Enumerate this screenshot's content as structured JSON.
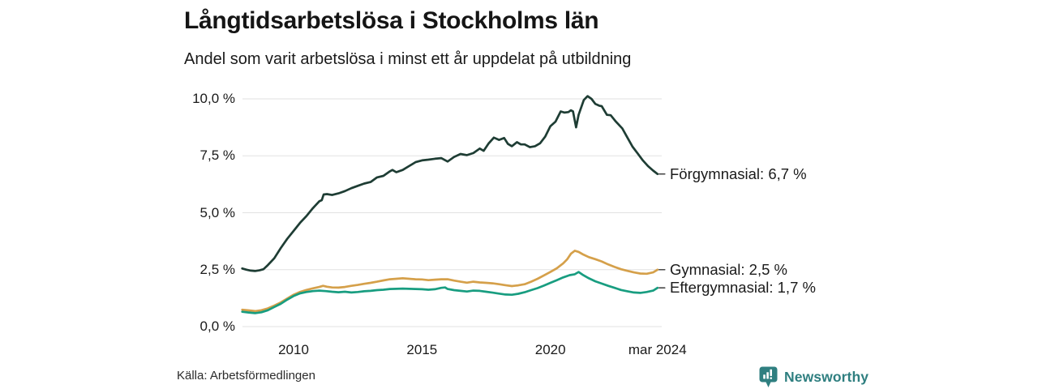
{
  "header": {},
  "footer": {},
  "branding": {
    "logo_text": "Newsworthy",
    "logo_color": "#2f7f80"
  },
  "chart_data": {
    "type": "line",
    "title": "Långtidsarbetslösa i Stockholms län",
    "subtitle": "Andel som varit arbetslösa i minst ett år uppdelat på utbildning",
    "source": "Källa: Arbetsförmedlingen",
    "grid_on": true,
    "grid_color": "#e2e2e2",
    "text_color": "#1a1a1a",
    "leader_dash_color": "#4a4a4a",
    "legend_position": "right-end-labels",
    "x_axis": {
      "unit": "year",
      "range": [
        2008.0,
        2024.34
      ],
      "tick_values": [
        2010,
        2015,
        2020,
        2024.17
      ],
      "tick_labels": [
        "2010",
        "2015",
        "2020",
        "mar 2024"
      ]
    },
    "y_axis": {
      "unit": "percent",
      "range": [
        0,
        10.5
      ],
      "tick_values": [
        0,
        2.5,
        5,
        7.5,
        10
      ],
      "tick_labels": [
        "0,0 %",
        "2,5 %",
        "5,0 %",
        "7,5 %",
        "10,0 %"
      ]
    },
    "series": [
      {
        "name": "Förgymnasial",
        "end_label": "Förgymnasial: 6,7 %",
        "end_value": 6.7,
        "color": "#1e3d34",
        "points": [
          [
            2008.0,
            2.55
          ],
          [
            2008.17,
            2.5
          ],
          [
            2008.33,
            2.46
          ],
          [
            2008.5,
            2.44
          ],
          [
            2008.67,
            2.47
          ],
          [
            2008.83,
            2.52
          ],
          [
            2009.0,
            2.7
          ],
          [
            2009.25,
            3.0
          ],
          [
            2009.5,
            3.45
          ],
          [
            2009.75,
            3.85
          ],
          [
            2010.0,
            4.2
          ],
          [
            2010.25,
            4.55
          ],
          [
            2010.5,
            4.85
          ],
          [
            2010.75,
            5.2
          ],
          [
            2011.0,
            5.5
          ],
          [
            2011.1,
            5.55
          ],
          [
            2011.17,
            5.8
          ],
          [
            2011.3,
            5.82
          ],
          [
            2011.5,
            5.78
          ],
          [
            2011.75,
            5.85
          ],
          [
            2012.0,
            5.95
          ],
          [
            2012.25,
            6.08
          ],
          [
            2012.5,
            6.18
          ],
          [
            2012.75,
            6.28
          ],
          [
            2013.0,
            6.35
          ],
          [
            2013.25,
            6.55
          ],
          [
            2013.5,
            6.62
          ],
          [
            2013.75,
            6.82
          ],
          [
            2013.85,
            6.88
          ],
          [
            2014.0,
            6.78
          ],
          [
            2014.25,
            6.88
          ],
          [
            2014.5,
            7.05
          ],
          [
            2014.75,
            7.22
          ],
          [
            2015.0,
            7.3
          ],
          [
            2015.25,
            7.33
          ],
          [
            2015.5,
            7.37
          ],
          [
            2015.75,
            7.4
          ],
          [
            2016.0,
            7.25
          ],
          [
            2016.25,
            7.45
          ],
          [
            2016.5,
            7.58
          ],
          [
            2016.75,
            7.53
          ],
          [
            2017.0,
            7.62
          ],
          [
            2017.25,
            7.82
          ],
          [
            2017.4,
            7.72
          ],
          [
            2017.6,
            8.05
          ],
          [
            2017.8,
            8.3
          ],
          [
            2018.0,
            8.2
          ],
          [
            2018.2,
            8.28
          ],
          [
            2018.35,
            8.02
          ],
          [
            2018.5,
            7.92
          ],
          [
            2018.7,
            8.1
          ],
          [
            2018.85,
            8.0
          ],
          [
            2019.0,
            8.0
          ],
          [
            2019.2,
            7.88
          ],
          [
            2019.4,
            7.92
          ],
          [
            2019.6,
            8.05
          ],
          [
            2019.8,
            8.35
          ],
          [
            2020.0,
            8.8
          ],
          [
            2020.2,
            9.0
          ],
          [
            2020.4,
            9.45
          ],
          [
            2020.55,
            9.4
          ],
          [
            2020.7,
            9.42
          ],
          [
            2020.8,
            9.5
          ],
          [
            2020.88,
            9.45
          ],
          [
            2021.0,
            8.75
          ],
          [
            2021.1,
            9.3
          ],
          [
            2021.3,
            9.95
          ],
          [
            2021.45,
            10.12
          ],
          [
            2021.6,
            10.0
          ],
          [
            2021.75,
            9.78
          ],
          [
            2021.9,
            9.7
          ],
          [
            2022.0,
            9.68
          ],
          [
            2022.2,
            9.3
          ],
          [
            2022.35,
            9.28
          ],
          [
            2022.55,
            9.0
          ],
          [
            2022.8,
            8.7
          ],
          [
            2023.0,
            8.3
          ],
          [
            2023.2,
            7.9
          ],
          [
            2023.4,
            7.6
          ],
          [
            2023.6,
            7.3
          ],
          [
            2023.8,
            7.05
          ],
          [
            2024.0,
            6.85
          ],
          [
            2024.17,
            6.7
          ]
        ]
      },
      {
        "name": "Gymnasial",
        "end_label": "Gymnasial: 2,5 %",
        "end_value": 2.5,
        "color": "#d5a04a",
        "points": [
          [
            2008.0,
            0.74
          ],
          [
            2008.25,
            0.71
          ],
          [
            2008.5,
            0.68
          ],
          [
            2008.75,
            0.72
          ],
          [
            2009.0,
            0.8
          ],
          [
            2009.25,
            0.92
          ],
          [
            2009.5,
            1.06
          ],
          [
            2009.75,
            1.23
          ],
          [
            2010.0,
            1.4
          ],
          [
            2010.25,
            1.52
          ],
          [
            2010.5,
            1.61
          ],
          [
            2010.75,
            1.68
          ],
          [
            2011.0,
            1.74
          ],
          [
            2011.15,
            1.79
          ],
          [
            2011.3,
            1.75
          ],
          [
            2011.5,
            1.72
          ],
          [
            2011.75,
            1.71
          ],
          [
            2012.0,
            1.74
          ],
          [
            2012.25,
            1.79
          ],
          [
            2012.5,
            1.83
          ],
          [
            2012.75,
            1.88
          ],
          [
            2013.0,
            1.92
          ],
          [
            2013.25,
            1.97
          ],
          [
            2013.5,
            2.03
          ],
          [
            2013.75,
            2.08
          ],
          [
            2014.0,
            2.1
          ],
          [
            2014.25,
            2.12
          ],
          [
            2014.5,
            2.1
          ],
          [
            2014.75,
            2.08
          ],
          [
            2015.0,
            2.07
          ],
          [
            2015.25,
            2.04
          ],
          [
            2015.5,
            2.06
          ],
          [
            2015.75,
            2.08
          ],
          [
            2016.0,
            2.08
          ],
          [
            2016.25,
            2.02
          ],
          [
            2016.5,
            1.97
          ],
          [
            2016.75,
            1.93
          ],
          [
            2017.0,
            1.97
          ],
          [
            2017.25,
            1.94
          ],
          [
            2017.5,
            1.92
          ],
          [
            2017.75,
            1.9
          ],
          [
            2018.0,
            1.86
          ],
          [
            2018.25,
            1.82
          ],
          [
            2018.5,
            1.78
          ],
          [
            2018.75,
            1.81
          ],
          [
            2019.0,
            1.86
          ],
          [
            2019.25,
            1.97
          ],
          [
            2019.5,
            2.1
          ],
          [
            2019.75,
            2.25
          ],
          [
            2020.0,
            2.4
          ],
          [
            2020.25,
            2.56
          ],
          [
            2020.5,
            2.78
          ],
          [
            2020.65,
            2.95
          ],
          [
            2020.8,
            3.2
          ],
          [
            2020.95,
            3.33
          ],
          [
            2021.1,
            3.28
          ],
          [
            2021.25,
            3.18
          ],
          [
            2021.5,
            3.05
          ],
          [
            2021.75,
            2.96
          ],
          [
            2022.0,
            2.86
          ],
          [
            2022.25,
            2.73
          ],
          [
            2022.5,
            2.62
          ],
          [
            2022.75,
            2.52
          ],
          [
            2023.0,
            2.45
          ],
          [
            2023.25,
            2.38
          ],
          [
            2023.5,
            2.33
          ],
          [
            2023.75,
            2.32
          ],
          [
            2024.0,
            2.38
          ],
          [
            2024.17,
            2.5
          ]
        ]
      },
      {
        "name": "Eftergymnasial",
        "end_label": "Eftergymnasial: 1,7 %",
        "end_value": 1.7,
        "color": "#189d80",
        "points": [
          [
            2008.0,
            0.65
          ],
          [
            2008.25,
            0.62
          ],
          [
            2008.5,
            0.59
          ],
          [
            2008.75,
            0.63
          ],
          [
            2009.0,
            0.72
          ],
          [
            2009.25,
            0.86
          ],
          [
            2009.5,
            1.0
          ],
          [
            2009.75,
            1.18
          ],
          [
            2010.0,
            1.34
          ],
          [
            2010.25,
            1.46
          ],
          [
            2010.5,
            1.52
          ],
          [
            2010.75,
            1.56
          ],
          [
            2011.0,
            1.58
          ],
          [
            2011.25,
            1.56
          ],
          [
            2011.5,
            1.53
          ],
          [
            2011.75,
            1.51
          ],
          [
            2012.0,
            1.53
          ],
          [
            2012.25,
            1.5
          ],
          [
            2012.5,
            1.52
          ],
          [
            2012.75,
            1.55
          ],
          [
            2013.0,
            1.57
          ],
          [
            2013.25,
            1.6
          ],
          [
            2013.5,
            1.62
          ],
          [
            2013.75,
            1.65
          ],
          [
            2014.0,
            1.66
          ],
          [
            2014.25,
            1.67
          ],
          [
            2014.5,
            1.66
          ],
          [
            2014.75,
            1.65
          ],
          [
            2015.0,
            1.64
          ],
          [
            2015.25,
            1.62
          ],
          [
            2015.5,
            1.64
          ],
          [
            2015.75,
            1.7
          ],
          [
            2015.9,
            1.72
          ],
          [
            2016.0,
            1.65
          ],
          [
            2016.25,
            1.6
          ],
          [
            2016.5,
            1.57
          ],
          [
            2016.75,
            1.54
          ],
          [
            2017.0,
            1.58
          ],
          [
            2017.25,
            1.57
          ],
          [
            2017.5,
            1.53
          ],
          [
            2017.75,
            1.49
          ],
          [
            2018.0,
            1.45
          ],
          [
            2018.25,
            1.41
          ],
          [
            2018.5,
            1.4
          ],
          [
            2018.75,
            1.44
          ],
          [
            2019.0,
            1.51
          ],
          [
            2019.25,
            1.6
          ],
          [
            2019.5,
            1.69
          ],
          [
            2019.75,
            1.8
          ],
          [
            2020.0,
            1.92
          ],
          [
            2020.25,
            2.04
          ],
          [
            2020.5,
            2.16
          ],
          [
            2020.75,
            2.26
          ],
          [
            2020.95,
            2.3
          ],
          [
            2021.1,
            2.4
          ],
          [
            2021.25,
            2.28
          ],
          [
            2021.5,
            2.12
          ],
          [
            2021.75,
            1.99
          ],
          [
            2022.0,
            1.89
          ],
          [
            2022.25,
            1.79
          ],
          [
            2022.5,
            1.7
          ],
          [
            2022.75,
            1.61
          ],
          [
            2023.0,
            1.55
          ],
          [
            2023.25,
            1.5
          ],
          [
            2023.5,
            1.48
          ],
          [
            2023.75,
            1.52
          ],
          [
            2024.0,
            1.58
          ],
          [
            2024.17,
            1.7
          ]
        ]
      }
    ]
  }
}
